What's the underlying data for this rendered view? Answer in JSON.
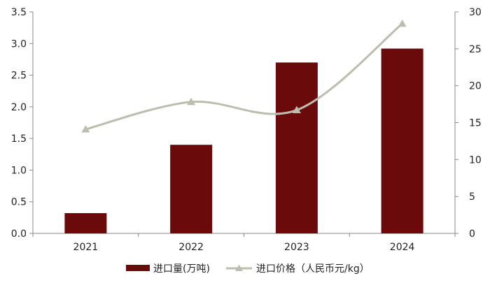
{
  "chart_data": {
    "type": "bar",
    "categories": [
      "2021",
      "2022",
      "2023",
      "2024"
    ],
    "series": [
      {
        "name": "进口量(万吨)",
        "type": "bar",
        "axis": "left",
        "color": "#6B0A0A",
        "values": [
          0.32,
          1.4,
          2.7,
          2.92
        ]
      },
      {
        "name": "进口价格（人民币元/kg）",
        "type": "line",
        "axis": "right",
        "color": "#BDBDAF",
        "marker": "triangle",
        "smooth": true,
        "values": [
          14.1,
          17.8,
          16.7,
          28.4
        ]
      }
    ],
    "y_left": {
      "ylim": [
        0,
        3.5
      ],
      "ticks": [
        "0.0",
        "0.5",
        "1.0",
        "1.5",
        "2.0",
        "2.5",
        "3.0",
        "3.5"
      ]
    },
    "y_right": {
      "ylim": [
        0,
        30
      ],
      "ticks": [
        "0",
        "5",
        "10",
        "15",
        "20",
        "25",
        "30"
      ]
    },
    "grid": false,
    "legend_position": "bottom"
  }
}
